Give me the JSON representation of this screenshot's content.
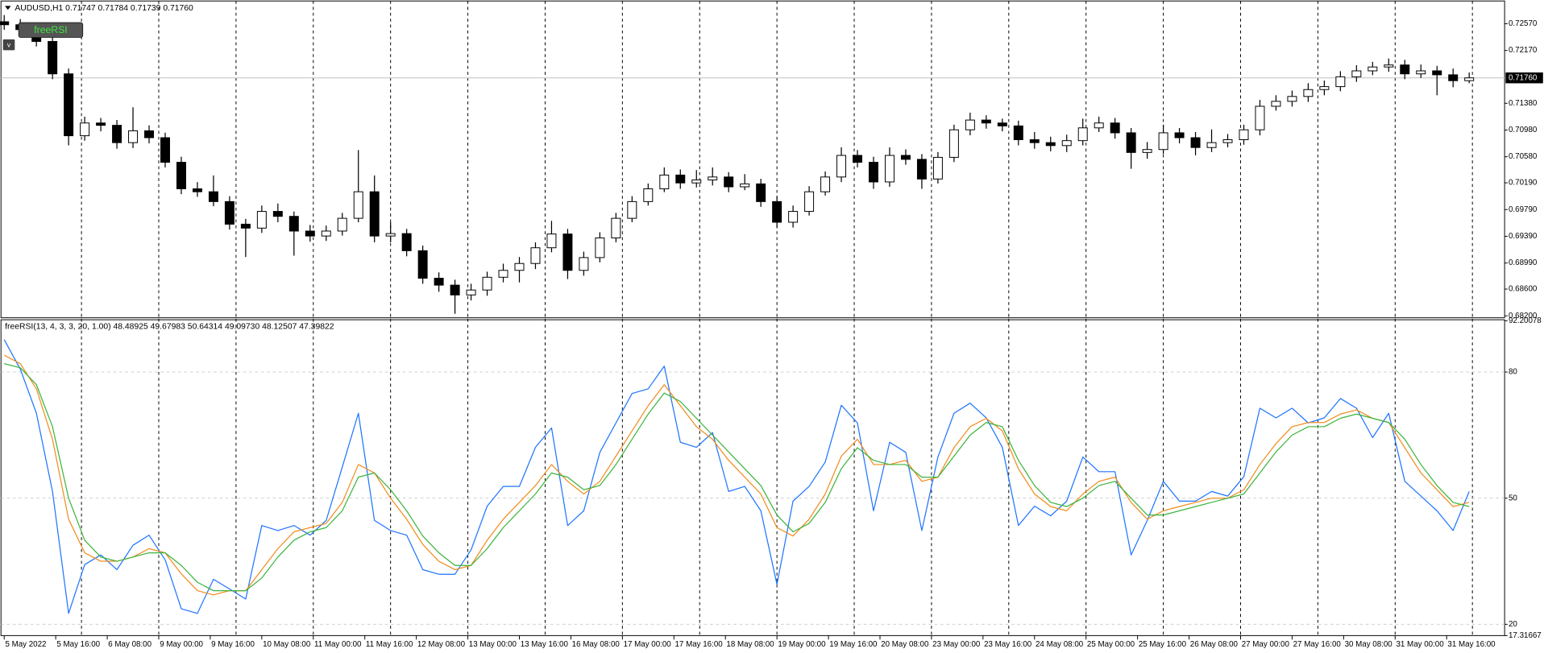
{
  "buttons": {
    "indicator": "freeRSI",
    "menu": "v"
  },
  "chart_data": [
    {
      "type": "candlestick",
      "title": "AUDUSD,H1  0.71747 0.71784 0.71739 0.71760",
      "x": [
        0,
        5,
        10,
        15,
        20,
        25,
        30,
        35,
        40,
        45,
        50,
        55,
        60,
        65,
        70,
        75,
        80,
        85,
        90,
        95,
        100,
        105,
        110,
        115,
        120,
        125,
        130,
        135,
        140,
        145,
        150,
        155,
        160,
        165,
        170,
        175,
        180,
        185,
        190,
        195,
        200,
        205,
        210,
        215,
        220,
        225,
        230,
        235,
        240,
        245,
        250,
        255,
        260,
        265,
        270,
        275,
        280,
        285,
        290,
        295,
        300,
        305,
        310,
        315,
        320,
        325,
        330,
        335,
        340,
        345,
        350,
        355,
        360,
        365,
        370,
        375,
        380,
        385,
        390,
        395,
        400,
        405,
        410,
        415,
        420,
        425,
        430,
        435,
        440,
        445,
        450,
        455
      ],
      "open": [
        0.726,
        0.72555,
        0.72482,
        0.72305,
        0.7182,
        0.70894,
        0.71085,
        0.7105,
        0.70791,
        0.70968,
        0.70865,
        0.70497,
        0.701,
        0.70056,
        0.69909,
        0.69571,
        0.69512,
        0.69762,
        0.69688,
        0.69468,
        0.69394,
        0.69468,
        0.69659,
        0.70056,
        0.69394,
        0.6943,
        0.69174,
        0.68762,
        0.68659,
        0.68512,
        0.68586,
        0.68777,
        0.6888,
        0.68983,
        0.69218,
        0.69424,
        0.6888,
        0.69071,
        0.69365,
        0.69659,
        0.69909,
        0.701,
        0.70306,
        0.70188,
        0.70233,
        0.70277,
        0.7013,
        0.70174,
        0.69909,
        0.696,
        0.69762,
        0.70056,
        0.70277,
        0.706,
        0.70497,
        0.70203,
        0.706,
        0.70541,
        0.70247,
        0.70571,
        0.70983,
        0.71129,
        0.71085,
        0.71041,
        0.70835,
        0.70791,
        0.70747,
        0.70821,
        0.71012,
        0.71085,
        0.70938,
        0.70644,
        0.70688,
        0.70938,
        0.70865,
        0.70718,
        0.70791,
        0.70835,
        0.70983,
        0.71335,
        0.71409,
        0.71482,
        0.71585,
        0.71629,
        0.71776,
        0.71865,
        0.71923,
        0.71953,
        0.7182,
        0.71865,
        0.71806,
        0.71718
      ],
      "high": [
        0.727,
        0.7264,
        0.7256,
        0.7238,
        0.719,
        0.7118,
        0.7116,
        0.7113,
        0.7132,
        0.7105,
        0.7094,
        0.7058,
        0.702,
        0.703,
        0.6999,
        0.6965,
        0.6985,
        0.6988,
        0.6976,
        0.6956,
        0.6955,
        0.6974,
        0.7068,
        0.703,
        0.696,
        0.695,
        0.6925,
        0.6885,
        0.6874,
        0.6868,
        0.6886,
        0.6898,
        0.6908,
        0.693,
        0.6962,
        0.695,
        0.6916,
        0.6945,
        0.6974,
        0.6999,
        0.7018,
        0.7042,
        0.7039,
        0.7038,
        0.7042,
        0.7035,
        0.7032,
        0.7025,
        0.6999,
        0.6985,
        0.7014,
        0.7036,
        0.7072,
        0.7068,
        0.7058,
        0.7072,
        0.7069,
        0.7062,
        0.7065,
        0.7106,
        0.7124,
        0.712,
        0.7115,
        0.7112,
        0.7095,
        0.7088,
        0.7091,
        0.7115,
        0.7118,
        0.7116,
        0.7101,
        0.708,
        0.7106,
        0.7101,
        0.7095,
        0.7099,
        0.7092,
        0.7106,
        0.7143,
        0.715,
        0.7157,
        0.7168,
        0.7172,
        0.7186,
        0.7195,
        0.72,
        0.7205,
        0.7203,
        0.7196,
        0.7194,
        0.719,
        0.7184
      ],
      "low": [
        0.7248,
        0.724,
        0.7223,
        0.7174,
        0.7075,
        0.7082,
        0.7096,
        0.707,
        0.7071,
        0.7078,
        0.7042,
        0.7002,
        0.6998,
        0.6984,
        0.6949,
        0.6908,
        0.6944,
        0.696,
        0.691,
        0.6931,
        0.6932,
        0.694,
        0.696,
        0.693,
        0.693,
        0.6909,
        0.6868,
        0.6856,
        0.6823,
        0.6843,
        0.685,
        0.687,
        0.687,
        0.689,
        0.6915,
        0.6875,
        0.688,
        0.69,
        0.693,
        0.696,
        0.6985,
        0.7005,
        0.701,
        0.7012,
        0.7015,
        0.7005,
        0.7008,
        0.6983,
        0.6952,
        0.6952,
        0.697,
        0.7,
        0.702,
        0.7042,
        0.701,
        0.7013,
        0.7046,
        0.701,
        0.7018,
        0.705,
        0.709,
        0.71,
        0.7096,
        0.7075,
        0.707,
        0.7066,
        0.7065,
        0.7075,
        0.7095,
        0.7085,
        0.704,
        0.7055,
        0.7062,
        0.7078,
        0.706,
        0.7065,
        0.7072,
        0.7076,
        0.709,
        0.7127,
        0.7133,
        0.714,
        0.715,
        0.7156,
        0.717,
        0.718,
        0.7185,
        0.7174,
        0.7176,
        0.715,
        0.7162,
        0.7168
      ],
      "close": [
        0.72555,
        0.72482,
        0.72305,
        0.7182,
        0.70894,
        0.71085,
        0.7105,
        0.70791,
        0.70968,
        0.70865,
        0.70497,
        0.701,
        0.70056,
        0.69909,
        0.69571,
        0.69512,
        0.69762,
        0.69688,
        0.69468,
        0.69394,
        0.69468,
        0.69659,
        0.70056,
        0.69394,
        0.6943,
        0.69174,
        0.68762,
        0.68659,
        0.68512,
        0.68586,
        0.68777,
        0.6888,
        0.68983,
        0.69218,
        0.69424,
        0.6888,
        0.69071,
        0.69365,
        0.69659,
        0.69909,
        0.701,
        0.70306,
        0.70188,
        0.70233,
        0.70277,
        0.7013,
        0.70174,
        0.69909,
        0.696,
        0.69762,
        0.70056,
        0.70277,
        0.706,
        0.70497,
        0.70203,
        0.706,
        0.70541,
        0.70247,
        0.70571,
        0.70983,
        0.71129,
        0.71085,
        0.71041,
        0.70835,
        0.70791,
        0.70747,
        0.70821,
        0.71012,
        0.71085,
        0.70938,
        0.70644,
        0.70688,
        0.70938,
        0.70865,
        0.70718,
        0.70791,
        0.70835,
        0.70983,
        0.71335,
        0.71409,
        0.71482,
        0.71585,
        0.71629,
        0.71776,
        0.71865,
        0.71923,
        0.71953,
        0.7182,
        0.71865,
        0.71806,
        0.71718,
        0.7176
      ],
      "color": "#000000",
      "xlim": [
        -1,
        466
      ],
      "ylim": [
        0.68185,
        0.72881
      ],
      "yticks": [
        {
          "value": 0.7257,
          "label": "0.72570"
        },
        {
          "value": 0.7217,
          "label": "0.72170"
        },
        {
          "value": 0.7138,
          "label": "0.71380"
        },
        {
          "value": 0.7098,
          "label": "0.70980"
        },
        {
          "value": 0.7058,
          "label": "0.70580"
        },
        {
          "value": 0.7019,
          "label": "0.70190"
        },
        {
          "value": 0.6979,
          "label": "0.69790"
        },
        {
          "value": 0.6939,
          "label": "0.69390"
        },
        {
          "value": 0.6899,
          "label": "0.68990"
        },
        {
          "value": 0.686,
          "label": "0.68600"
        },
        {
          "value": 0.682,
          "label": "0.68200"
        }
      ],
      "last_price": {
        "value": 0.7176,
        "label": "0.71760"
      },
      "grid": false
    },
    {
      "type": "line",
      "title": "freeRSI(13, 4, 3, 3, 20, 1.00) 48.48925 49.67983 50.64314 49.09730 48.12507 47.39822",
      "x": [
        0,
        5,
        10,
        15,
        20,
        25,
        30,
        35,
        40,
        45,
        50,
        55,
        60,
        65,
        70,
        75,
        80,
        85,
        90,
        95,
        100,
        105,
        110,
        115,
        120,
        125,
        130,
        135,
        140,
        145,
        150,
        155,
        160,
        165,
        170,
        175,
        180,
        185,
        190,
        195,
        200,
        205,
        210,
        215,
        220,
        225,
        230,
        235,
        240,
        245,
        250,
        255,
        260,
        265,
        270,
        275,
        280,
        285,
        290,
        295,
        300,
        305,
        310,
        315,
        320,
        325,
        330,
        335,
        340,
        345,
        350,
        355,
        360,
        365,
        370,
        375,
        380,
        385,
        390,
        395,
        400,
        405,
        410,
        415,
        420,
        425,
        430,
        435,
        440,
        445,
        450,
        455
      ],
      "series": [
        {
          "color": "#1e74ff",
          "values": [
            87.7,
            80.7,
            70.2,
            51.6,
            22.6,
            34.2,
            36.5,
            33,
            38.8,
            41.2,
            35.3,
            23.7,
            22.6,
            30.7,
            28.4,
            26,
            43.5,
            42.3,
            43.5,
            41.2,
            44.7,
            57.4,
            70.2,
            44.7,
            42.3,
            41.2,
            33,
            31.9,
            31.9,
            37.7,
            48.1,
            52.8,
            52.8,
            62.1,
            66.7,
            43.5,
            47,
            60.9,
            67.9,
            74.9,
            76,
            81.4,
            63.3,
            62.1,
            65.6,
            51.6,
            52.8,
            47,
            29.5,
            49.3,
            52.8,
            58.6,
            72.1,
            67.9,
            47,
            63.3,
            60.9,
            42.3,
            59.8,
            70.2,
            72.6,
            69.1,
            62.1,
            43.5,
            48.1,
            45.8,
            49.3,
            59.8,
            56.3,
            56.3,
            36.5,
            44.7,
            54,
            49.3,
            49.3,
            51.6,
            50.5,
            55.1,
            71.4,
            69.1,
            71.4,
            67.9,
            69.1,
            73.7,
            71.4,
            64.4,
            70.2,
            54,
            50.5,
            47,
            42.3,
            51.6
          ]
        },
        {
          "color": "#f08c1e",
          "values": [
            84,
            82,
            76,
            64,
            45,
            37,
            35,
            35,
            36,
            38,
            37,
            32,
            28,
            27,
            28,
            28,
            33,
            38,
            42,
            43,
            44,
            49,
            58,
            56,
            50,
            45,
            39,
            35,
            33,
            34,
            40,
            45,
            49,
            53,
            58,
            54,
            51,
            54,
            60,
            66,
            72,
            77,
            72,
            67,
            64,
            59,
            55,
            51,
            43,
            41,
            45,
            51,
            60,
            64,
            58,
            58,
            59,
            54,
            55,
            62,
            67,
            69,
            66,
            57,
            51,
            48,
            47,
            51,
            54,
            55,
            49,
            45,
            47,
            48,
            49,
            50,
            50,
            52,
            58,
            63,
            67,
            68,
            68,
            70,
            71,
            69,
            68,
            62,
            56,
            52,
            48,
            49
          ]
        },
        {
          "color": "#3cb43c",
          "values": [
            82,
            81,
            77,
            67,
            50,
            40,
            36,
            35,
            36,
            37,
            37,
            34,
            30,
            28,
            28,
            28,
            31,
            36,
            40,
            42,
            43,
            47,
            55,
            56,
            52,
            47,
            41,
            37,
            34,
            34,
            38,
            43,
            47,
            51,
            56,
            55,
            52,
            53,
            58,
            64,
            70,
            75,
            73,
            69,
            65,
            61,
            57,
            53,
            46,
            42,
            44,
            49,
            57,
            62,
            59,
            58,
            58,
            55,
            55,
            60,
            65,
            68,
            67,
            59,
            53,
            49,
            48,
            50,
            53,
            54,
            50,
            46,
            46,
            47,
            48,
            49,
            50,
            51,
            56,
            61,
            65,
            67,
            67,
            69,
            70,
            69,
            68,
            64,
            58,
            53,
            49,
            48
          ]
        }
      ],
      "xlim": [
        -1,
        466
      ],
      "ylim": [
        17.31667,
        92.20078
      ],
      "yticks": [
        92.20078,
        80,
        50,
        20,
        17.31667
      ],
      "xticks": [
        {
          "value": 0,
          "label": "5 May 2022"
        },
        {
          "value": 16,
          "label": "5 May 16:00"
        },
        {
          "value": 32,
          "label": "6 May 08:00"
        },
        {
          "value": 48,
          "label": "9 May 00:00"
        },
        {
          "value": 64,
          "label": "9 May 16:00"
        },
        {
          "value": 80,
          "label": "10 May 08:00"
        },
        {
          "value": 96,
          "label": "11 May 00:00"
        },
        {
          "value": 112,
          "label": "11 May 16:00"
        },
        {
          "value": 128,
          "label": "12 May 08:00"
        },
        {
          "value": 144,
          "label": "13 May 00:00"
        },
        {
          "value": 160,
          "label": "13 May 16:00"
        },
        {
          "value": 176,
          "label": "16 May 08:00"
        },
        {
          "value": 192,
          "label": "17 May 00:00"
        },
        {
          "value": 208,
          "label": "17 May 16:00"
        },
        {
          "value": 224,
          "label": "18 May 08:00"
        },
        {
          "value": 240,
          "label": "19 May 00:00"
        },
        {
          "value": 256,
          "label": "19 May 16:00"
        },
        {
          "value": 272,
          "label": "20 May 08:00"
        },
        {
          "value": 288,
          "label": "23 May 00:00"
        },
        {
          "value": 304,
          "label": "23 May 16:00"
        },
        {
          "value": 320,
          "label": "24 May 08:00"
        },
        {
          "value": 336,
          "label": "25 May 00:00"
        },
        {
          "value": 352,
          "label": "25 May 16:00"
        },
        {
          "value": 368,
          "label": "26 May 08:00"
        },
        {
          "value": 384,
          "label": "27 May 00:00"
        },
        {
          "value": 400,
          "label": "27 May 16:00"
        },
        {
          "value": 416,
          "label": "30 May 08:00"
        },
        {
          "value": 432,
          "label": "31 May 00:00"
        },
        {
          "value": 448,
          "label": "31 May 16:00"
        }
      ],
      "grid": true
    }
  ]
}
